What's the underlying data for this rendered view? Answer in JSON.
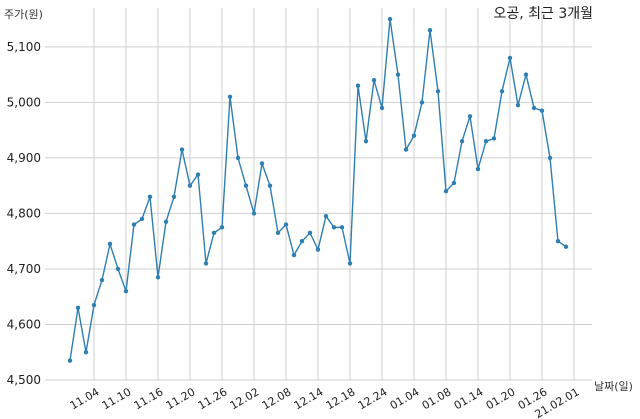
{
  "chart_data": {
    "type": "line",
    "title": "오공, 최근 3개월",
    "ylabel": "주가(원)",
    "xlabel": "날짜(일)",
    "ylim": [
      4500,
      5170
    ],
    "yticks": [
      4500,
      4600,
      4700,
      4800,
      4900,
      5000,
      5100
    ],
    "ytick_labels": [
      "4,500",
      "4,600",
      "4,700",
      "4,800",
      "4,900",
      "5,000",
      "5,100"
    ],
    "xtick_labels": [
      "11.04",
      "11.10",
      "11.16",
      "11.20",
      "11.26",
      "12.02",
      "12.08",
      "12.14",
      "12.18",
      "12.24",
      "01.04",
      "01.08",
      "01.14",
      "01.20",
      "01.26",
      "21.02.01"
    ],
    "xtick_index": [
      3,
      7,
      11,
      15,
      19,
      23,
      27,
      31,
      35,
      39,
      43,
      47,
      51,
      55,
      59,
      63
    ],
    "grid": true,
    "color": "#2f7fb0",
    "series": [
      {
        "values": [
          4535,
          4630,
          4550,
          4635,
          4680,
          4745,
          4700,
          4660,
          4780,
          4790,
          4830,
          4685,
          4785,
          4830,
          4915,
          4850,
          4870,
          4710,
          4765,
          4775,
          5010,
          4900,
          4850,
          4800,
          4890,
          4850,
          4765,
          4780,
          4725,
          4750,
          4765,
          4735,
          4795,
          4775,
          4775,
          4710,
          5030,
          4930,
          5040,
          4990,
          5150,
          5050,
          4915,
          4940,
          5000,
          5130,
          5020,
          4840,
          4855,
          4930,
          4975,
          4880,
          4930,
          4935,
          5020,
          5080,
          4995,
          5050,
          4990,
          4985,
          4900,
          4750,
          4740
        ]
      }
    ]
  }
}
